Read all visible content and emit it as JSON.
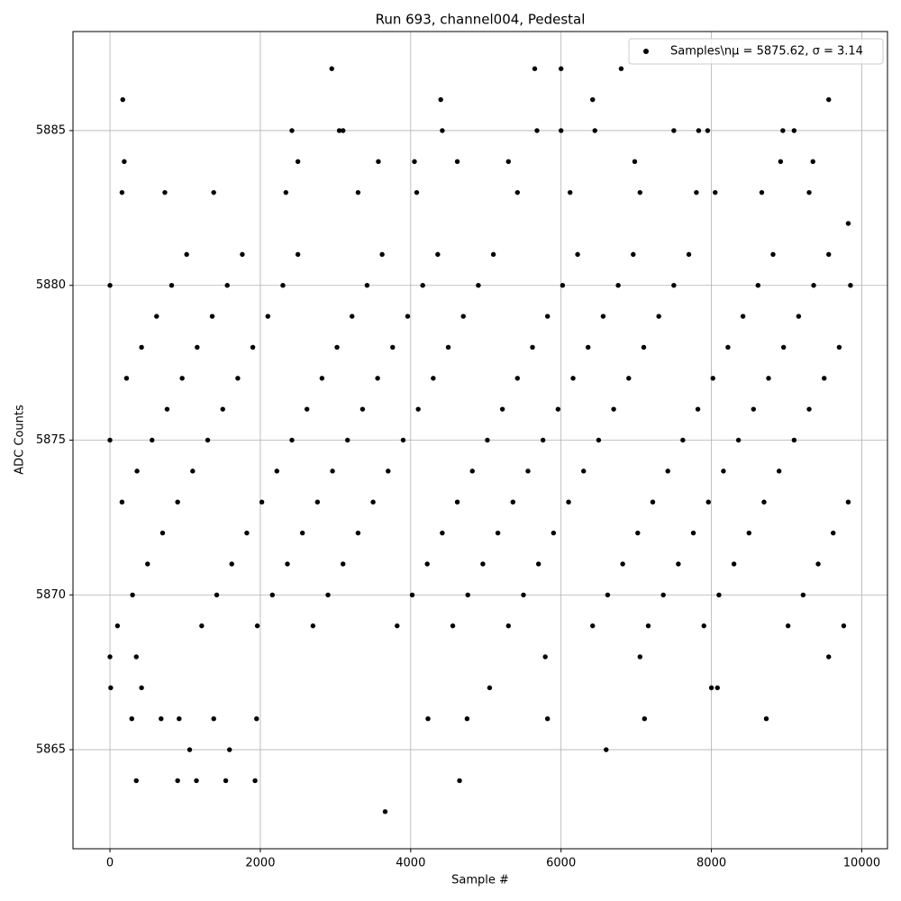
{
  "chart_data": {
    "type": "scatter",
    "title": "Run 693, channel004, Pedestal",
    "x_label": "Sample #",
    "y_label": "ADC Counts",
    "x": [
      100,
      160,
      220,
      300,
      360,
      420,
      500,
      560,
      620,
      700,
      760,
      820,
      900,
      960,
      1020,
      1100,
      1160,
      1220,
      1300,
      1360,
      1420,
      1500,
      1560,
      1620,
      1700,
      1760,
      1820,
      1900,
      1960,
      2020,
      2100,
      2160,
      2220,
      2300,
      2360,
      2420,
      2500,
      2560,
      2620,
      2700,
      2760,
      2820,
      2900,
      2960,
      3020,
      3100,
      3160,
      3220,
      3300,
      3360,
      3420,
      3500,
      3560,
      3620,
      3700,
      3760,
      3820,
      3900,
      3960,
      4020,
      4100,
      4160,
      4220,
      4300,
      4360,
      4420,
      4500,
      4560,
      4620,
      4700,
      4760,
      4820,
      4900,
      4960,
      5020,
      5100,
      5160,
      5220,
      5300,
      5360,
      5420,
      5500,
      5560,
      5620,
      5700,
      5760,
      5820,
      5900,
      5960,
      6020,
      6100,
      6160,
      6220,
      6300,
      6360,
      6420,
      6500,
      6560,
      6620,
      6700,
      6760,
      6820,
      6900,
      6960,
      7020,
      7100,
      7160,
      7220,
      7300,
      7360,
      7420,
      7500,
      7560,
      7620,
      7700,
      7760,
      7820,
      7900,
      7960,
      8020,
      8100,
      8160,
      8220,
      8300,
      8360,
      8420,
      8500,
      8560,
      8620,
      8700,
      8760,
      8820,
      8900,
      8960,
      9020,
      9100,
      9160,
      9220,
      9300,
      9360,
      9420,
      9500,
      9560,
      9620,
      9700,
      9760,
      9820,
      9820,
      0,
      0,
      9850,
      170,
      190,
      160,
      2950,
      5650,
      6000,
      6800,
      4400,
      6420,
      9560,
      3660,
      4650,
      350,
      900,
      1150,
      1540,
      1930,
      1060,
      1590,
      6600,
      290,
      680,
      920,
      1380,
      1950,
      4230,
      4750,
      5820,
      7110,
      8730,
      2420,
      3050,
      3100,
      4420,
      5680,
      6000,
      6450,
      7500,
      7830,
      7950,
      8950,
      9100,
      2500,
      3570,
      4050,
      4620,
      5300,
      6980,
      8920,
      9350,
      9300,
      2340,
      730,
      1380,
      3300,
      4080,
      5420,
      6120,
      7050,
      8050,
      8670,
      7800,
      0,
      10,
      350,
      420,
      5790,
      7050,
      9560,
      8000,
      8080,
      5050
    ],
    "series": [
      {
        "name": "Samples\\nμ = 5875.62, σ = 3.14",
        "color": "#000000",
        "values": [
          5869,
          5873,
          5877,
          5870,
          5874,
          5878,
          5871,
          5875,
          5879,
          5872,
          5876,
          5880,
          5873,
          5877,
          5881,
          5874,
          5878,
          5869,
          5875,
          5879,
          5870,
          5876,
          5880,
          5871,
          5877,
          5881,
          5872,
          5878,
          5869,
          5873,
          5879,
          5870,
          5874,
          5880,
          5871,
          5875,
          5881,
          5872,
          5876,
          5869,
          5873,
          5877,
          5870,
          5874,
          5878,
          5871,
          5875,
          5879,
          5872,
          5876,
          5880,
          5873,
          5877,
          5881,
          5874,
          5878,
          5869,
          5875,
          5879,
          5870,
          5876,
          5880,
          5871,
          5877,
          5881,
          5872,
          5878,
          5869,
          5873,
          5879,
          5870,
          5874,
          5880,
          5871,
          5875,
          5881,
          5872,
          5876,
          5869,
          5873,
          5877,
          5870,
          5874,
          5878,
          5871,
          5875,
          5879,
          5872,
          5876,
          5880,
          5873,
          5877,
          5881,
          5874,
          5878,
          5869,
          5875,
          5879,
          5870,
          5876,
          5880,
          5871,
          5877,
          5881,
          5872,
          5878,
          5869,
          5873,
          5879,
          5870,
          5874,
          5880,
          5871,
          5875,
          5881,
          5872,
          5876,
          5869,
          5873,
          5877,
          5870,
          5874,
          5878,
          5871,
          5875,
          5879,
          5872,
          5876,
          5880,
          5873,
          5877,
          5881,
          5874,
          5878,
          5869,
          5875,
          5879,
          5870,
          5876,
          5880,
          5871,
          5877,
          5881,
          5872,
          5878,
          5869,
          5873,
          5882,
          5875,
          5880,
          5880,
          5886,
          5884,
          5883,
          5887,
          5887,
          5887,
          5887,
          5886,
          5886,
          5886,
          5863,
          5864,
          5864,
          5864,
          5864,
          5864,
          5864,
          5865,
          5865,
          5865,
          5866,
          5866,
          5866,
          5866,
          5866,
          5866,
          5866,
          5866,
          5866,
          5866,
          5885,
          5885,
          5885,
          5885,
          5885,
          5885,
          5885,
          5885,
          5885,
          5885,
          5885,
          5885,
          5884,
          5884,
          5884,
          5884,
          5884,
          5884,
          5884,
          5884,
          5883,
          5883,
          5883,
          5883,
          5883,
          5883,
          5883,
          5883,
          5883,
          5883,
          5883,
          5883,
          5868,
          5867,
          5868,
          5867,
          5868,
          5868,
          5868,
          5867,
          5867,
          5867
        ]
      }
    ],
    "xlim": [
      -492,
      10342
    ],
    "ylim": [
      5861.8,
      5888.2
    ],
    "xticks": [
      0,
      2000,
      4000,
      6000,
      8000,
      10000
    ],
    "yticks": [
      5865,
      5870,
      5875,
      5880,
      5885
    ],
    "grid": true,
    "legend": "upper right"
  }
}
